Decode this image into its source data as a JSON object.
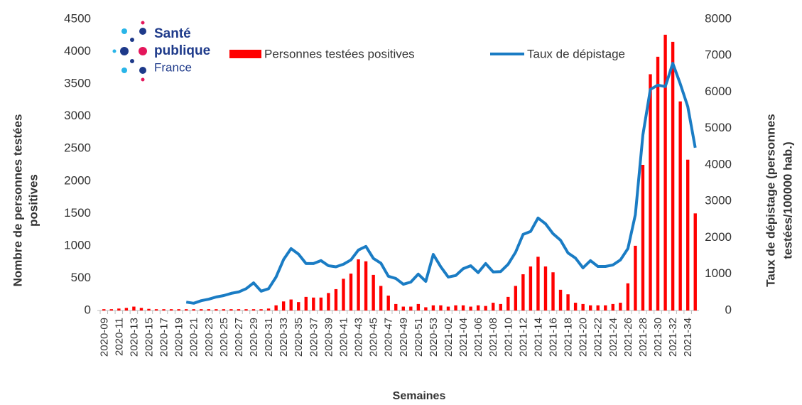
{
  "chart_data": {
    "type": "bar_line",
    "logo": {
      "line1": "Santé",
      "line2": "publique",
      "line3": "France"
    },
    "x_label": "Semaines",
    "y_label": [
      "Nombre de personnes testées",
      "positives"
    ],
    "y2_label": [
      "Taux de dépistage (personnes",
      "testées/100000 hab.)"
    ],
    "categories": [
      "2020-09",
      null,
      "2020-11",
      null,
      "2020-13",
      null,
      "2020-15",
      null,
      "2020-17",
      null,
      "2020-19",
      null,
      "2020-21",
      null,
      "2020-23",
      null,
      "2020-25",
      null,
      "2020-27",
      null,
      "2020-29",
      null,
      "2020-31",
      null,
      "2020-33",
      null,
      "2020-35",
      null,
      "2020-37",
      null,
      "2020-39",
      null,
      "2020-41",
      null,
      "2020-43",
      null,
      "2020-45",
      null,
      "2020-47",
      null,
      "2020-49",
      null,
      "2020-51",
      null,
      "2020-53",
      null,
      "2021-02",
      null,
      "2021-04",
      null,
      "2021-06",
      null,
      "2021-08",
      null,
      "2021-10",
      null,
      "2021-12",
      null,
      "2021-14",
      null,
      "2021-16",
      null,
      "2021-18",
      null,
      "2021-20",
      null,
      "2021-22",
      null,
      "2021-24",
      null,
      "2021-26",
      null,
      "2021-28",
      null,
      "2021-30",
      null,
      "2021-32",
      null,
      "2021-34",
      null
    ],
    "series": [
      {
        "name": "Personnes testées positives",
        "type": "bar",
        "color": "#ff0000",
        "values": [
          20,
          20,
          30,
          40,
          60,
          40,
          25,
          20,
          20,
          20,
          20,
          20,
          20,
          20,
          20,
          20,
          20,
          20,
          20,
          20,
          20,
          20,
          30,
          80,
          140,
          170,
          130,
          210,
          200,
          200,
          270,
          330,
          490,
          570,
          790,
          760,
          550,
          380,
          230,
          100,
          60,
          60,
          100,
          50,
          80,
          80,
          60,
          80,
          80,
          60,
          80,
          70,
          120,
          100,
          210,
          380,
          560,
          680,
          830,
          680,
          590,
          320,
          250,
          120,
          100,
          80,
          80,
          80,
          100,
          120,
          420,
          1000,
          2250,
          3650,
          3920,
          4260,
          4150,
          3230,
          2330,
          1500
        ]
      },
      {
        "name": "Taux de dépistage",
        "type": "line",
        "axis": "y2",
        "color": "#1a7cc4",
        "values": [
          null,
          null,
          null,
          null,
          null,
          null,
          null,
          null,
          null,
          null,
          null,
          230,
          200,
          270,
          310,
          370,
          410,
          470,
          510,
          600,
          760,
          530,
          600,
          920,
          1400,
          1700,
          1550,
          1290,
          1290,
          1370,
          1230,
          1200,
          1270,
          1390,
          1660,
          1760,
          1430,
          1300,
          940,
          880,
          720,
          780,
          1000,
          800,
          1540,
          1200,
          920,
          960,
          1150,
          1230,
          1040,
          1290,
          1060,
          1070,
          1270,
          1600,
          2090,
          2170,
          2540,
          2380,
          2110,
          1930,
          1580,
          1440,
          1170,
          1370,
          1210,
          1210,
          1250,
          1390,
          1700,
          2630,
          4820,
          6070,
          6190,
          6150,
          6790,
          6220,
          5600,
          4470
        ]
      }
    ],
    "ylim": [
      0,
      4500
    ],
    "yticks": [
      0,
      500,
      1000,
      1500,
      2000,
      2500,
      3000,
      3500,
      4000,
      4500
    ],
    "y2lim": [
      0,
      8000
    ],
    "y2ticks": [
      0,
      1000,
      2000,
      3000,
      4000,
      5000,
      6000,
      7000,
      8000
    ]
  }
}
